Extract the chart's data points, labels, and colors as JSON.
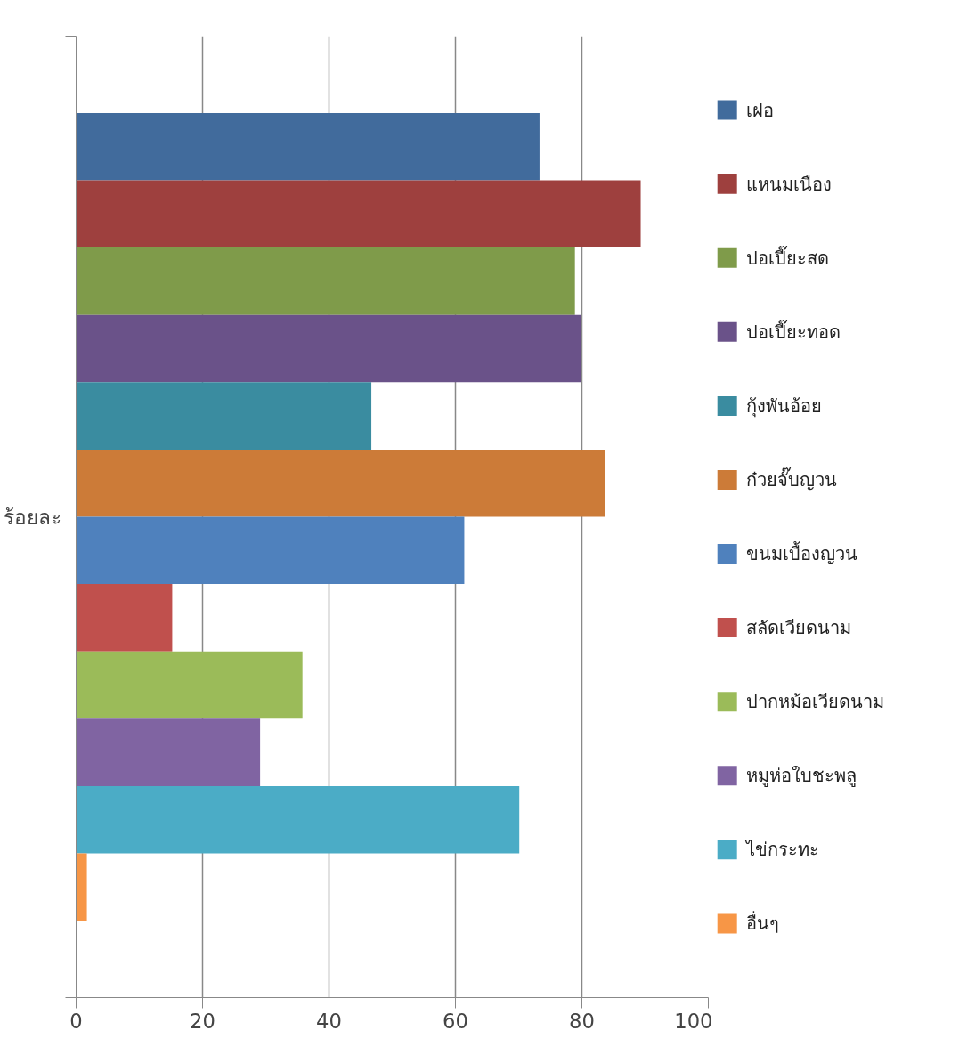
{
  "chart_data": {
    "type": "bar",
    "orientation": "horizontal",
    "ylabel": "ร้อยละ",
    "categories": [
      null
    ],
    "series": [
      {
        "name": "เฝอ",
        "color": "#416b9c",
        "values": [
          73.3
        ]
      },
      {
        "name": "แหนมเนือง",
        "color": "#9e403e",
        "values": [
          89.3
        ]
      },
      {
        "name": "ปอเปี๊ยะสด",
        "color": "#7f9b4a",
        "values": [
          78.9
        ]
      },
      {
        "name": "ปอเปี๊ยะทอด",
        "color": "#6a5289",
        "values": [
          79.8
        ]
      },
      {
        "name": "กุ้งพันอ้อย",
        "color": "#3a8ca0",
        "values": [
          46.7
        ]
      },
      {
        "name": "ก๋วยจั๊บญวน",
        "color": "#cc7b38",
        "values": [
          83.7
        ]
      },
      {
        "name": "ขนมเบื้องญวน",
        "color": "#4f81bd",
        "values": [
          61.4
        ]
      },
      {
        "name": "สลัดเวียดนาม",
        "color": "#c0504d",
        "values": [
          15.2
        ]
      },
      {
        "name": "ปากหม้อเวียดนาม",
        "color": "#9bbb59",
        "values": [
          35.8
        ]
      },
      {
        "name": "หมูห่อใบชะพลู",
        "color": "#8064a2",
        "values": [
          29.1
        ]
      },
      {
        "name": "ไข่กระทะ",
        "color": "#4bacc6",
        "values": [
          70.1
        ]
      },
      {
        "name": "อื่นๆ",
        "color": "#f79646",
        "values": [
          1.7
        ]
      }
    ],
    "xlim": [
      0,
      100
    ],
    "xticks": [
      0,
      20,
      40,
      60,
      80,
      100
    ],
    "grid": "x",
    "legend": "right",
    "tick_labels": "x"
  }
}
